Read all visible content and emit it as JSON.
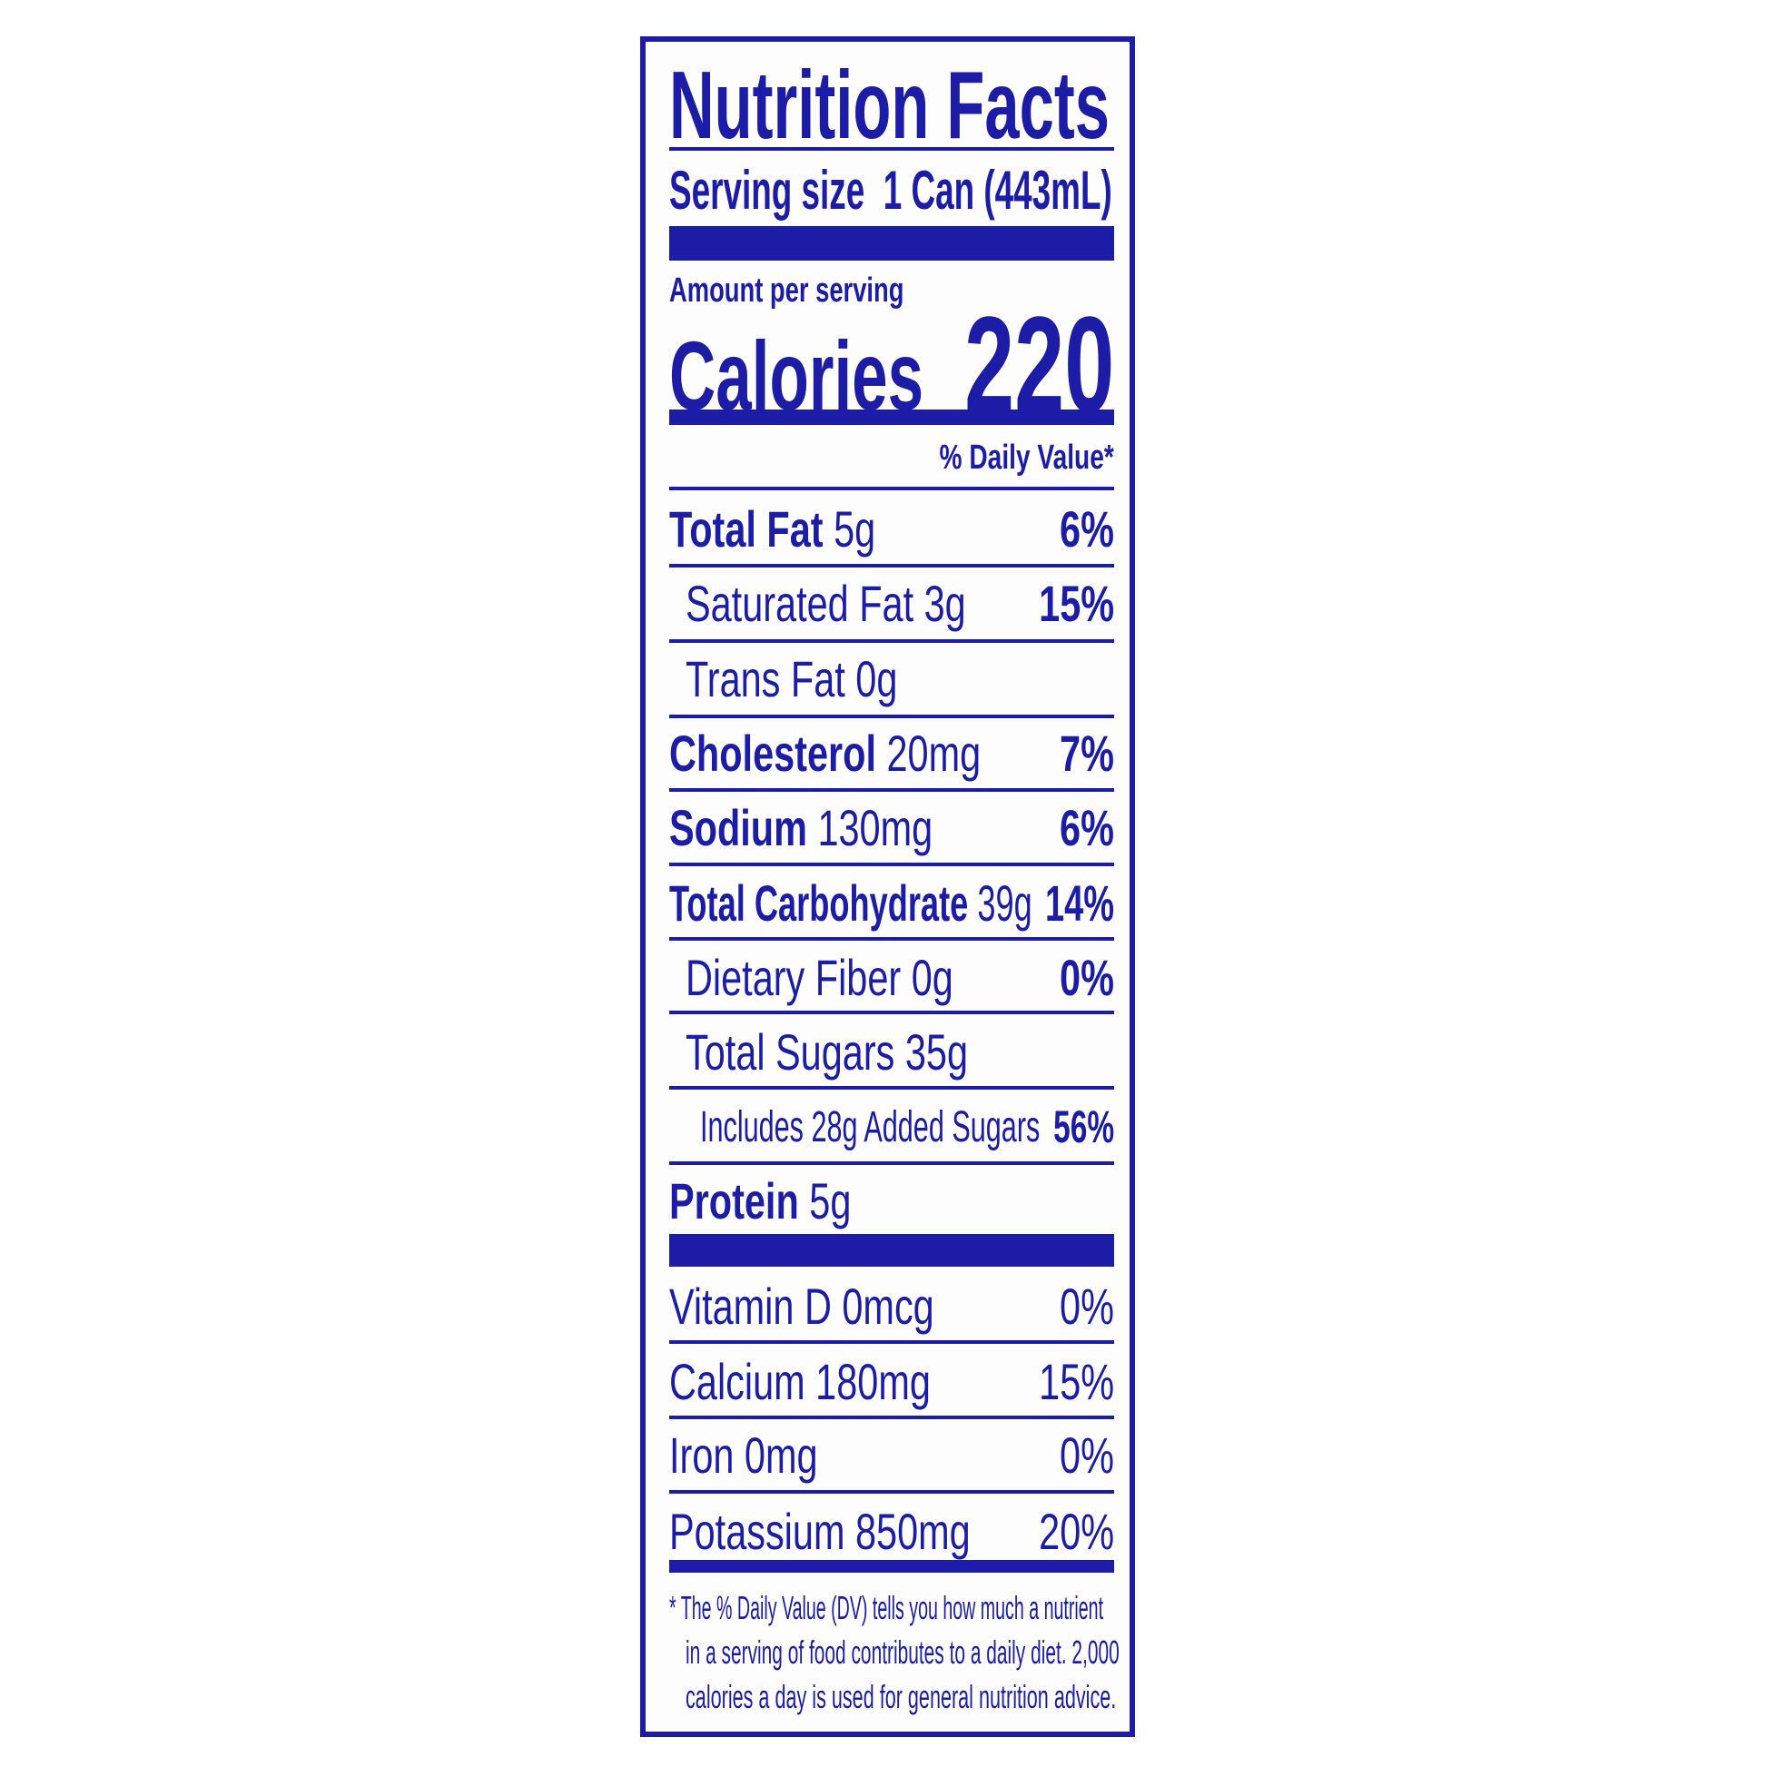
{
  "title": "Nutrition Facts",
  "serving": {
    "label": "Serving size",
    "value": "1 Can (443mL)"
  },
  "amount_label": "Amount per serving",
  "calories": {
    "label": "Calories",
    "value": "220"
  },
  "dv_header": "% Daily Value*",
  "nutrients": [
    {
      "name": "Total Fat",
      "amount": "5g",
      "dv": "6%"
    },
    {
      "name": "Saturated Fat",
      "amount": "3g",
      "dv": "15%"
    },
    {
      "name": "Trans Fat",
      "amount": "0g",
      "dv": ""
    },
    {
      "name": "Cholesterol",
      "amount": "20mg",
      "dv": "7%"
    },
    {
      "name": "Sodium",
      "amount": "130mg",
      "dv": "6%"
    },
    {
      "name": "Total Carbohydrate",
      "amount": "39g",
      "dv": "14%"
    },
    {
      "name": "Dietary Fiber",
      "amount": "0g",
      "dv": "0%"
    },
    {
      "name": "Total Sugars",
      "amount": "35g",
      "dv": ""
    },
    {
      "name": "Includes 28g Added Sugars",
      "amount": "",
      "dv": "56%"
    },
    {
      "name": "Protein",
      "amount": "5g",
      "dv": ""
    }
  ],
  "vitamins": [
    {
      "name": "Vitamin D 0mcg",
      "dv": "0%"
    },
    {
      "name": "Calcium 180mg",
      "dv": "15%"
    },
    {
      "name": "Iron 0mg",
      "dv": "0%"
    },
    {
      "name": "Potassium 850mg",
      "dv": "20%"
    }
  ],
  "footnote": [
    "* The % Daily Value (DV) tells you how much a nutrient",
    "in a serving of food contributes to a daily diet. 2,000",
    "calories a day is used for general nutrition advice."
  ],
  "colors": {
    "ink": "#1c1ca6",
    "background": "#ffffff"
  }
}
